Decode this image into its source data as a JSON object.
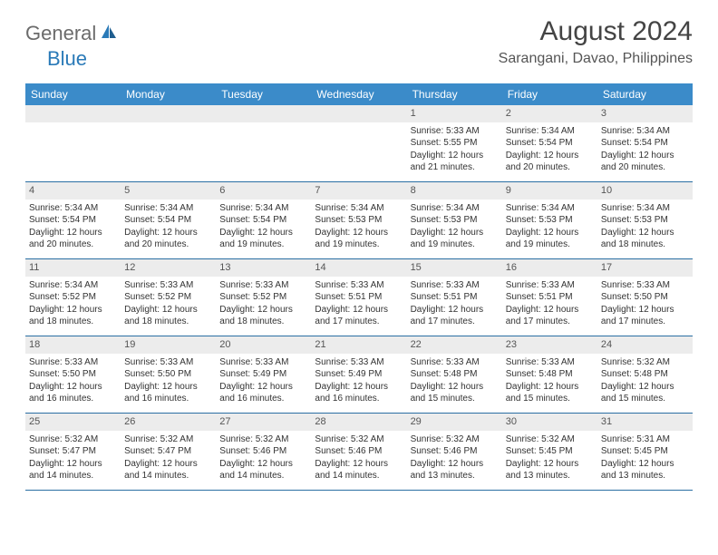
{
  "logo": {
    "textA": "General",
    "textB": "Blue"
  },
  "title": "August 2024",
  "location": "Sarangani, Davao, Philippines",
  "colors": {
    "header_bg": "#3b8bc9",
    "header_text": "#ffffff",
    "daynum_bg": "#ececec",
    "week_border": "#2a6fa3",
    "text": "#333333",
    "logo_gray": "#6b6b6b",
    "logo_blue": "#2a7ab8"
  },
  "dayHeaders": [
    "Sunday",
    "Monday",
    "Tuesday",
    "Wednesday",
    "Thursday",
    "Friday",
    "Saturday"
  ],
  "weeks": [
    [
      {
        "day": "",
        "sunrise": "",
        "sunset": "",
        "daylight": ""
      },
      {
        "day": "",
        "sunrise": "",
        "sunset": "",
        "daylight": ""
      },
      {
        "day": "",
        "sunrise": "",
        "sunset": "",
        "daylight": ""
      },
      {
        "day": "",
        "sunrise": "",
        "sunset": "",
        "daylight": ""
      },
      {
        "day": "1",
        "sunrise": "Sunrise: 5:33 AM",
        "sunset": "Sunset: 5:55 PM",
        "daylight": "Daylight: 12 hours and 21 minutes."
      },
      {
        "day": "2",
        "sunrise": "Sunrise: 5:34 AM",
        "sunset": "Sunset: 5:54 PM",
        "daylight": "Daylight: 12 hours and 20 minutes."
      },
      {
        "day": "3",
        "sunrise": "Sunrise: 5:34 AM",
        "sunset": "Sunset: 5:54 PM",
        "daylight": "Daylight: 12 hours and 20 minutes."
      }
    ],
    [
      {
        "day": "4",
        "sunrise": "Sunrise: 5:34 AM",
        "sunset": "Sunset: 5:54 PM",
        "daylight": "Daylight: 12 hours and 20 minutes."
      },
      {
        "day": "5",
        "sunrise": "Sunrise: 5:34 AM",
        "sunset": "Sunset: 5:54 PM",
        "daylight": "Daylight: 12 hours and 20 minutes."
      },
      {
        "day": "6",
        "sunrise": "Sunrise: 5:34 AM",
        "sunset": "Sunset: 5:54 PM",
        "daylight": "Daylight: 12 hours and 19 minutes."
      },
      {
        "day": "7",
        "sunrise": "Sunrise: 5:34 AM",
        "sunset": "Sunset: 5:53 PM",
        "daylight": "Daylight: 12 hours and 19 minutes."
      },
      {
        "day": "8",
        "sunrise": "Sunrise: 5:34 AM",
        "sunset": "Sunset: 5:53 PM",
        "daylight": "Daylight: 12 hours and 19 minutes."
      },
      {
        "day": "9",
        "sunrise": "Sunrise: 5:34 AM",
        "sunset": "Sunset: 5:53 PM",
        "daylight": "Daylight: 12 hours and 19 minutes."
      },
      {
        "day": "10",
        "sunrise": "Sunrise: 5:34 AM",
        "sunset": "Sunset: 5:53 PM",
        "daylight": "Daylight: 12 hours and 18 minutes."
      }
    ],
    [
      {
        "day": "11",
        "sunrise": "Sunrise: 5:34 AM",
        "sunset": "Sunset: 5:52 PM",
        "daylight": "Daylight: 12 hours and 18 minutes."
      },
      {
        "day": "12",
        "sunrise": "Sunrise: 5:33 AM",
        "sunset": "Sunset: 5:52 PM",
        "daylight": "Daylight: 12 hours and 18 minutes."
      },
      {
        "day": "13",
        "sunrise": "Sunrise: 5:33 AM",
        "sunset": "Sunset: 5:52 PM",
        "daylight": "Daylight: 12 hours and 18 minutes."
      },
      {
        "day": "14",
        "sunrise": "Sunrise: 5:33 AM",
        "sunset": "Sunset: 5:51 PM",
        "daylight": "Daylight: 12 hours and 17 minutes."
      },
      {
        "day": "15",
        "sunrise": "Sunrise: 5:33 AM",
        "sunset": "Sunset: 5:51 PM",
        "daylight": "Daylight: 12 hours and 17 minutes."
      },
      {
        "day": "16",
        "sunrise": "Sunrise: 5:33 AM",
        "sunset": "Sunset: 5:51 PM",
        "daylight": "Daylight: 12 hours and 17 minutes."
      },
      {
        "day": "17",
        "sunrise": "Sunrise: 5:33 AM",
        "sunset": "Sunset: 5:50 PM",
        "daylight": "Daylight: 12 hours and 17 minutes."
      }
    ],
    [
      {
        "day": "18",
        "sunrise": "Sunrise: 5:33 AM",
        "sunset": "Sunset: 5:50 PM",
        "daylight": "Daylight: 12 hours and 16 minutes."
      },
      {
        "day": "19",
        "sunrise": "Sunrise: 5:33 AM",
        "sunset": "Sunset: 5:50 PM",
        "daylight": "Daylight: 12 hours and 16 minutes."
      },
      {
        "day": "20",
        "sunrise": "Sunrise: 5:33 AM",
        "sunset": "Sunset: 5:49 PM",
        "daylight": "Daylight: 12 hours and 16 minutes."
      },
      {
        "day": "21",
        "sunrise": "Sunrise: 5:33 AM",
        "sunset": "Sunset: 5:49 PM",
        "daylight": "Daylight: 12 hours and 16 minutes."
      },
      {
        "day": "22",
        "sunrise": "Sunrise: 5:33 AM",
        "sunset": "Sunset: 5:48 PM",
        "daylight": "Daylight: 12 hours and 15 minutes."
      },
      {
        "day": "23",
        "sunrise": "Sunrise: 5:33 AM",
        "sunset": "Sunset: 5:48 PM",
        "daylight": "Daylight: 12 hours and 15 minutes."
      },
      {
        "day": "24",
        "sunrise": "Sunrise: 5:32 AM",
        "sunset": "Sunset: 5:48 PM",
        "daylight": "Daylight: 12 hours and 15 minutes."
      }
    ],
    [
      {
        "day": "25",
        "sunrise": "Sunrise: 5:32 AM",
        "sunset": "Sunset: 5:47 PM",
        "daylight": "Daylight: 12 hours and 14 minutes."
      },
      {
        "day": "26",
        "sunrise": "Sunrise: 5:32 AM",
        "sunset": "Sunset: 5:47 PM",
        "daylight": "Daylight: 12 hours and 14 minutes."
      },
      {
        "day": "27",
        "sunrise": "Sunrise: 5:32 AM",
        "sunset": "Sunset: 5:46 PM",
        "daylight": "Daylight: 12 hours and 14 minutes."
      },
      {
        "day": "28",
        "sunrise": "Sunrise: 5:32 AM",
        "sunset": "Sunset: 5:46 PM",
        "daylight": "Daylight: 12 hours and 14 minutes."
      },
      {
        "day": "29",
        "sunrise": "Sunrise: 5:32 AM",
        "sunset": "Sunset: 5:46 PM",
        "daylight": "Daylight: 12 hours and 13 minutes."
      },
      {
        "day": "30",
        "sunrise": "Sunrise: 5:32 AM",
        "sunset": "Sunset: 5:45 PM",
        "daylight": "Daylight: 12 hours and 13 minutes."
      },
      {
        "day": "31",
        "sunrise": "Sunrise: 5:31 AM",
        "sunset": "Sunset: 5:45 PM",
        "daylight": "Daylight: 12 hours and 13 minutes."
      }
    ]
  ]
}
